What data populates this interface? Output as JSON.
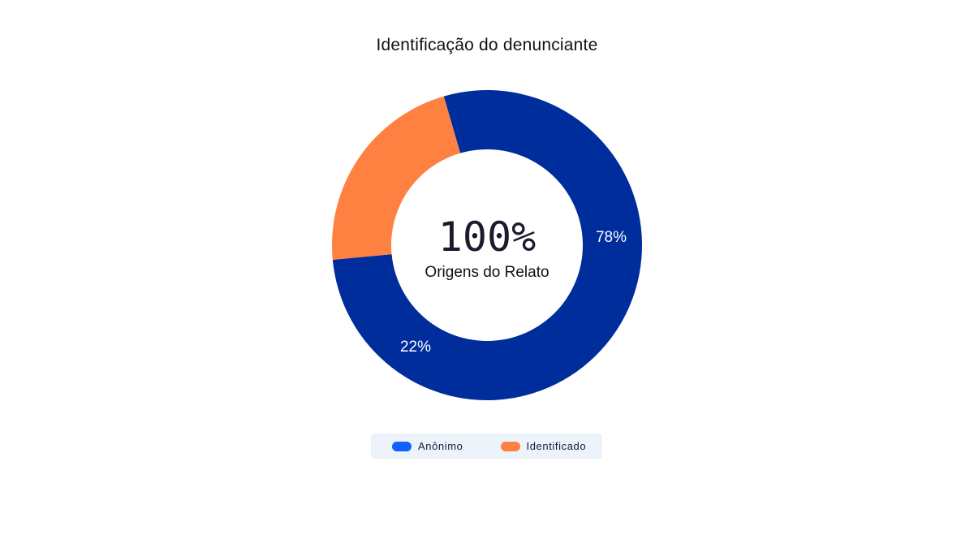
{
  "chart_data": {
    "type": "pie",
    "variant": "donut",
    "title": "Identificação do denunciante",
    "center": {
      "value": "100%",
      "label": "Origens do Relato"
    },
    "slices": [
      {
        "name": "Anônimo",
        "value": 78,
        "label": "78%",
        "color": "#002d9c"
      },
      {
        "name": "Identificado",
        "value": 22,
        "label": "22%",
        "color": "#ff8142"
      }
    ],
    "legend": {
      "placement": "bottom-center",
      "items": [
        {
          "label": "Anônimo",
          "color": "#1062fe"
        },
        {
          "label": "Identificado",
          "color": "#ff8142"
        }
      ]
    }
  }
}
